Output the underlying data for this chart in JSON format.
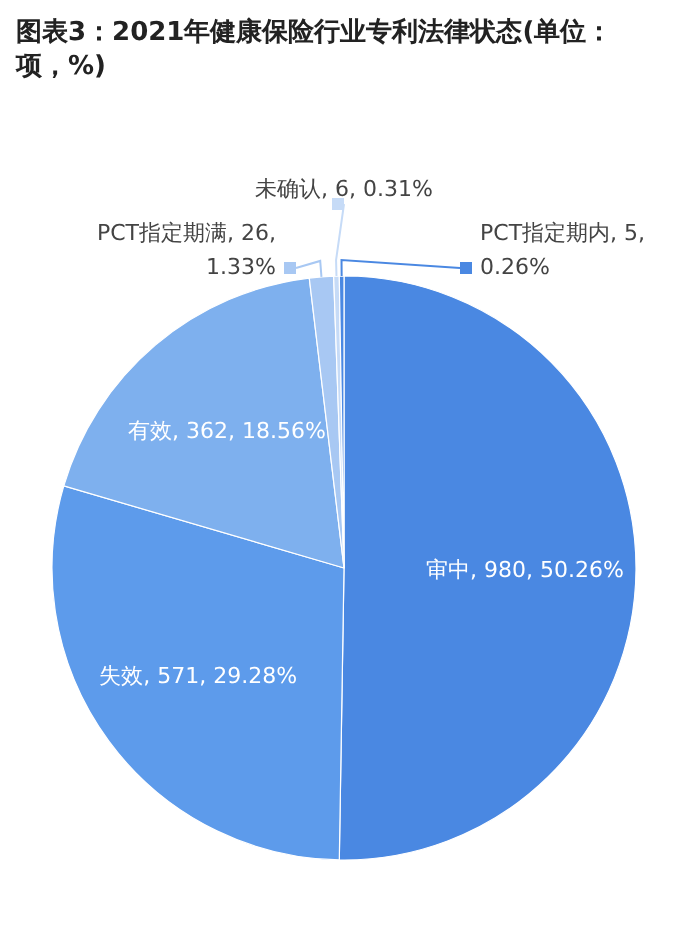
{
  "chart_data": {
    "type": "pie",
    "title": "图表3：2021年健康保险行业专利法律状态(单位：项，%)",
    "categories": [
      "审中",
      "失效",
      "有效",
      "PCT指定期满",
      "未确认",
      "PCT指定期内"
    ],
    "values": [
      980,
      571,
      362,
      26,
      6,
      5
    ],
    "value_labels": [
      "980, 50.26%",
      "571, 29.28%",
      "362, 18.56%",
      "26, 1.33%",
      "6, 0.31%",
      "5, 0.26%"
    ],
    "colors": [
      "#4a88e2",
      "#5d9beb",
      "#7eb0ee",
      "#a8c8f3",
      "#c6dbf7",
      "#4a88e2"
    ]
  }
}
